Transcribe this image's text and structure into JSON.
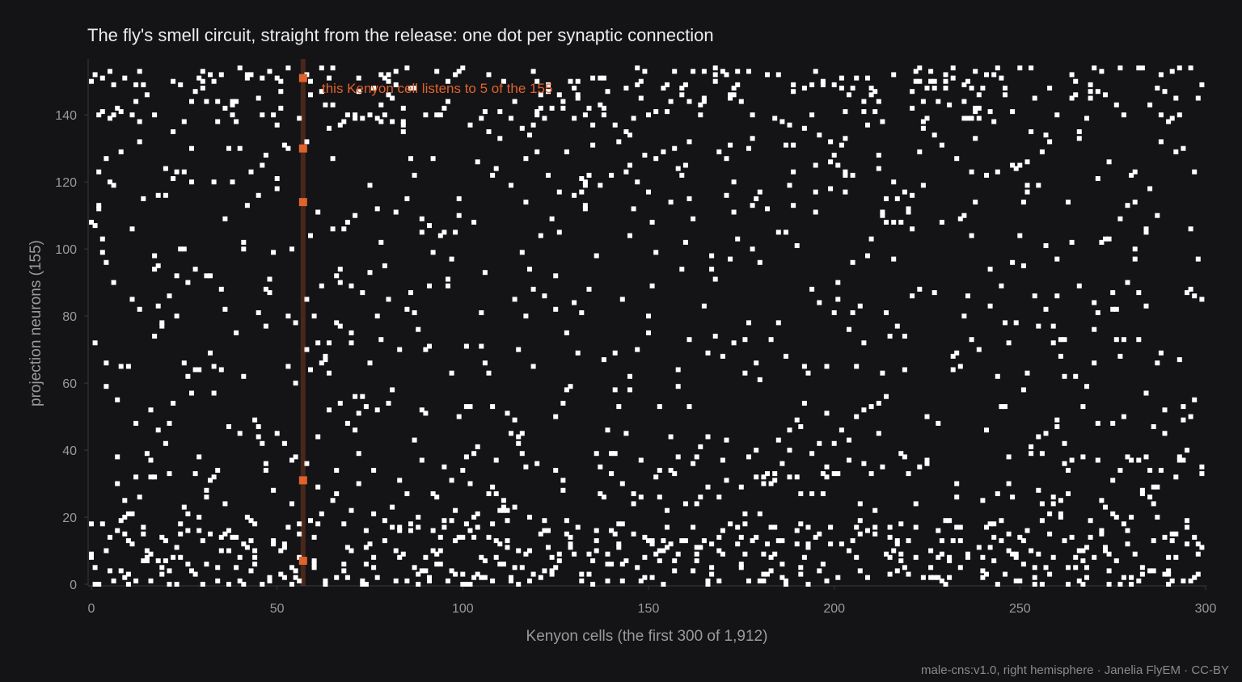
{
  "chart_data": {
    "type": "scatter",
    "title": "The fly's smell circuit, straight from the release: one dot per synaptic connection",
    "xlabel": "Kenyon cells  (the first 300 of 1,912)",
    "ylabel": "projection neurons  (155)",
    "footer": "male-cns:v1.0, right hemisphere · Janelia FlyEM · CC-BY",
    "xlim": [
      0,
      300
    ],
    "ylim": [
      0,
      155
    ],
    "x_ticks": [
      0,
      50,
      100,
      150,
      200,
      250,
      300
    ],
    "y_ticks": [
      0,
      20,
      40,
      60,
      80,
      100,
      120,
      140
    ],
    "grid": false,
    "background_color": "#141416",
    "dot_color": "#ffffff",
    "highlight_color": "#e0622d",
    "highlight": {
      "kenyon_cell": 57,
      "projection_neurons": [
        7,
        31,
        114,
        130,
        151
      ],
      "annotation": "this Kenyon cell listens to 5 of the 155"
    },
    "connections_per_kenyon_cell": 5,
    "projection_neuron_weights_note": "connections concentrated on low-index projection neurons (0–20) and on the top band (140–155)",
    "points_rendered_per_column": "approx. 5 synaptic connections per Kenyon cell column, generated deterministically by the page script"
  }
}
